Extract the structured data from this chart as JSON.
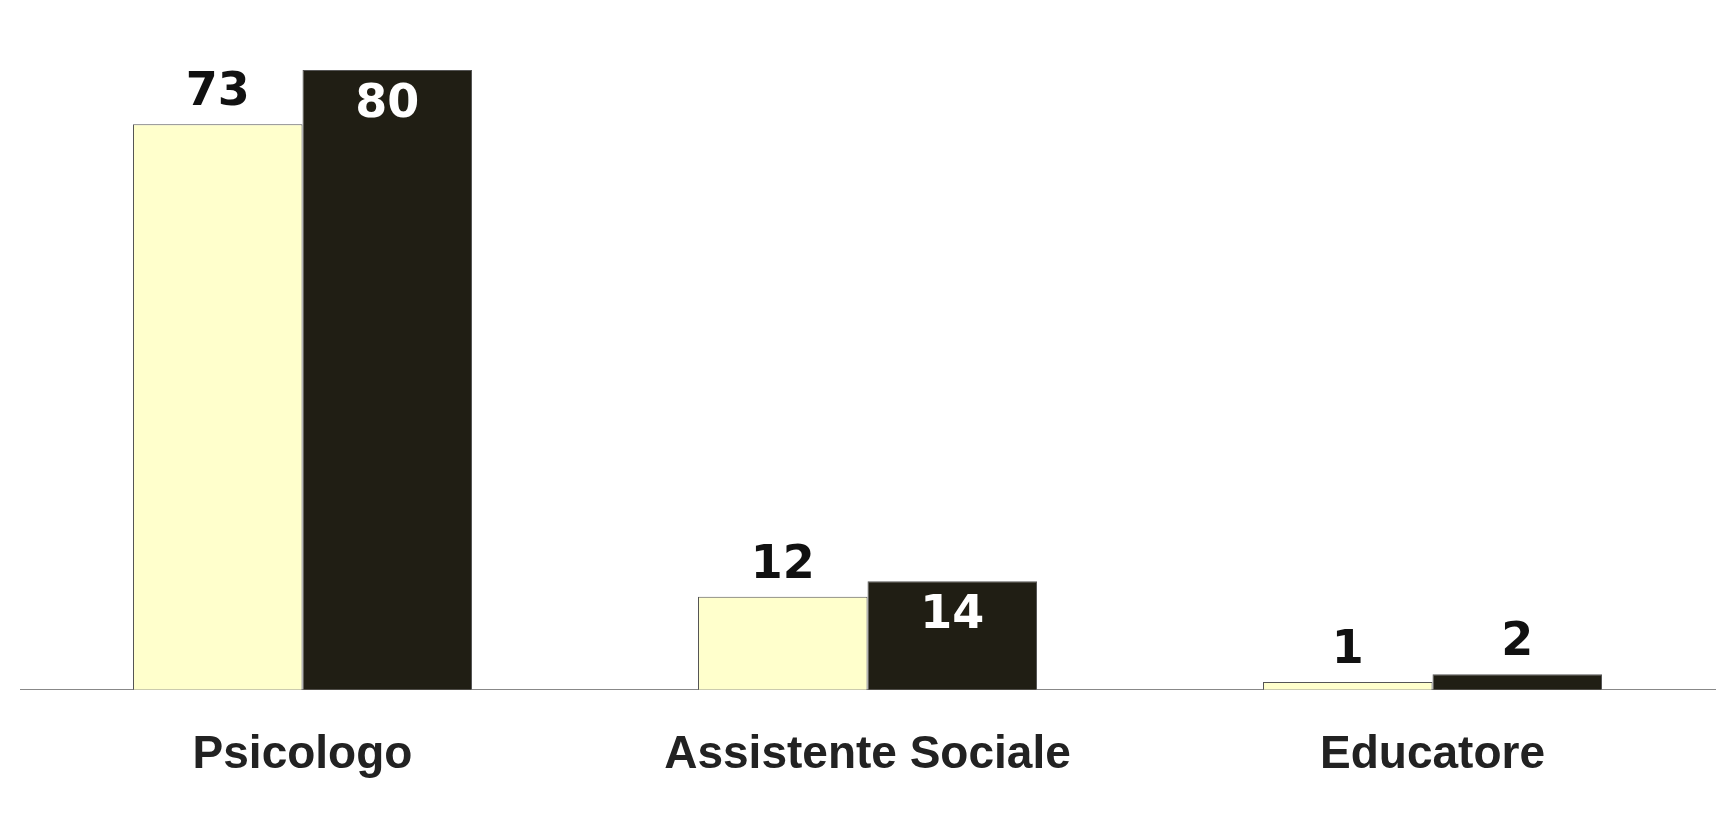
{
  "chart_data": {
    "type": "bar",
    "categories": [
      "Psicologo",
      "Assistente Sociale",
      "Educatore"
    ],
    "series": [
      {
        "color": "#ffffcc",
        "values": [
          73,
          12,
          1
        ]
      },
      {
        "color": "#201e14",
        "values": [
          80,
          14,
          2
        ]
      }
    ],
    "data_labels": true
  }
}
